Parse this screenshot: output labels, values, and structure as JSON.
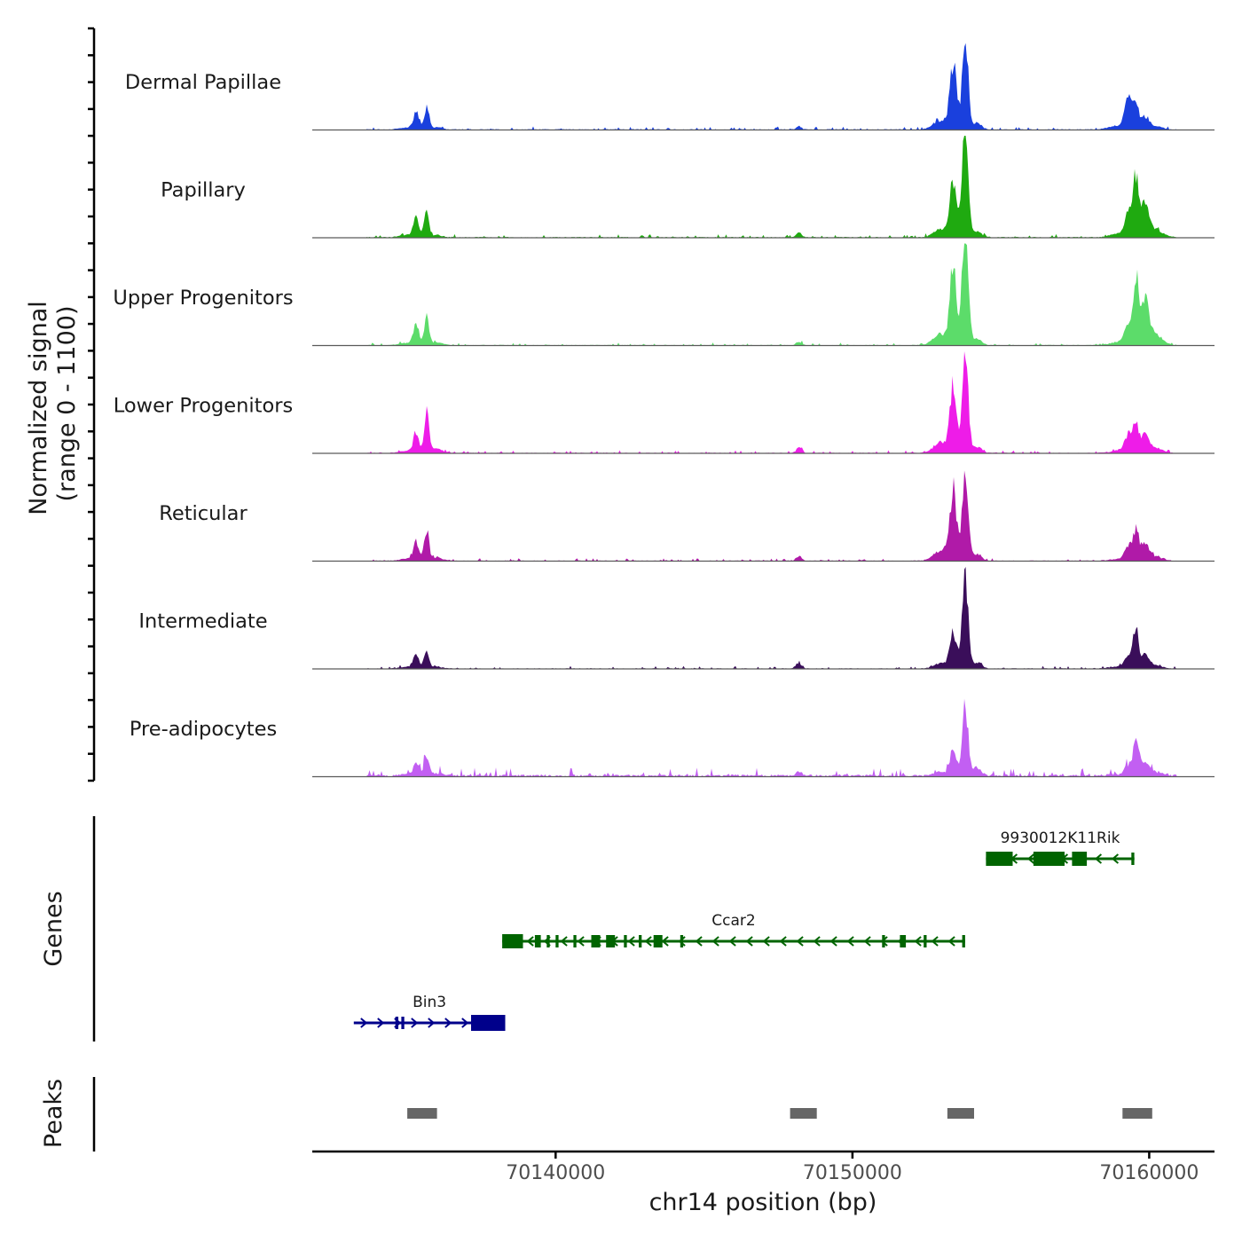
{
  "chart_data": {
    "type": "area",
    "title": "",
    "ylabel_line1": "Normalized signal",
    "ylabel_line2": "(range 0 - 1100)",
    "ylim": [
      0,
      1100
    ],
    "xlabel": "chr14 position (bp)",
    "xlim": [
      70131800,
      70162200
    ],
    "xticks": [
      70140000,
      70150000,
      70160000
    ],
    "xtick_labels": [
      "70140000",
      "70150000",
      "70160000"
    ],
    "peak_centers": [
      70135500,
      70148200,
      70153500,
      70159500
    ],
    "series": [
      {
        "name": "Dermal Papillae",
        "color": "#1a40dd",
        "values": [
          190,
          240,
          35,
          720,
          1020,
          70,
          320,
          220,
          130,
          10
        ]
      },
      {
        "name": "Papillary",
        "color": "#1faa10",
        "values": [
          220,
          270,
          60,
          620,
          1300,
          70,
          280,
          620,
          350,
          10
        ]
      },
      {
        "name": "Upper Progenitors",
        "color": "#5cdc6a",
        "values": [
          230,
          320,
          40,
          860,
          1420,
          70,
          230,
          700,
          450,
          8
        ]
      },
      {
        "name": "Lower Progenitors",
        "color": "#ee1ce8",
        "values": [
          220,
          470,
          60,
          720,
          1150,
          70,
          190,
          300,
          200,
          8
        ]
      },
      {
        "name": "Reticular",
        "color": "#b01aa8",
        "values": [
          200,
          340,
          55,
          780,
          980,
          70,
          150,
          320,
          180,
          8
        ]
      },
      {
        "name": "Intermediate",
        "color": "#3a0e5a",
        "values": [
          160,
          220,
          60,
          400,
          1000,
          70,
          150,
          450,
          140,
          8
        ]
      },
      {
        "name": "Pre-adipocytes",
        "color": "#c25ff2",
        "values": [
          150,
          230,
          50,
          280,
          780,
          70,
          110,
          370,
          140,
          25
        ]
      }
    ],
    "genes_label": "Genes",
    "peaks_label": "Peaks",
    "genes": [
      {
        "name": "9930012K11Rik",
        "start": 70154500,
        "end": 70159500,
        "strand": "-",
        "color": "#006400"
      },
      {
        "name": "Ccar2",
        "start": 70138200,
        "end": 70153800,
        "strand": "-",
        "color": "#006400"
      },
      {
        "name": "Bin3",
        "start": 70133200,
        "end": 70138300,
        "strand": "+",
        "color": "#00008b"
      }
    ],
    "peaks": [
      {
        "start": 70135000,
        "end": 70136000
      },
      {
        "start": 70147900,
        "end": 70148800
      },
      {
        "start": 70153200,
        "end": 70154100
      },
      {
        "start": 70159100,
        "end": 70160100
      }
    ],
    "colors": {
      "peak": "#666666",
      "axis": "#000000",
      "baseline": "#5a5a5a"
    }
  }
}
